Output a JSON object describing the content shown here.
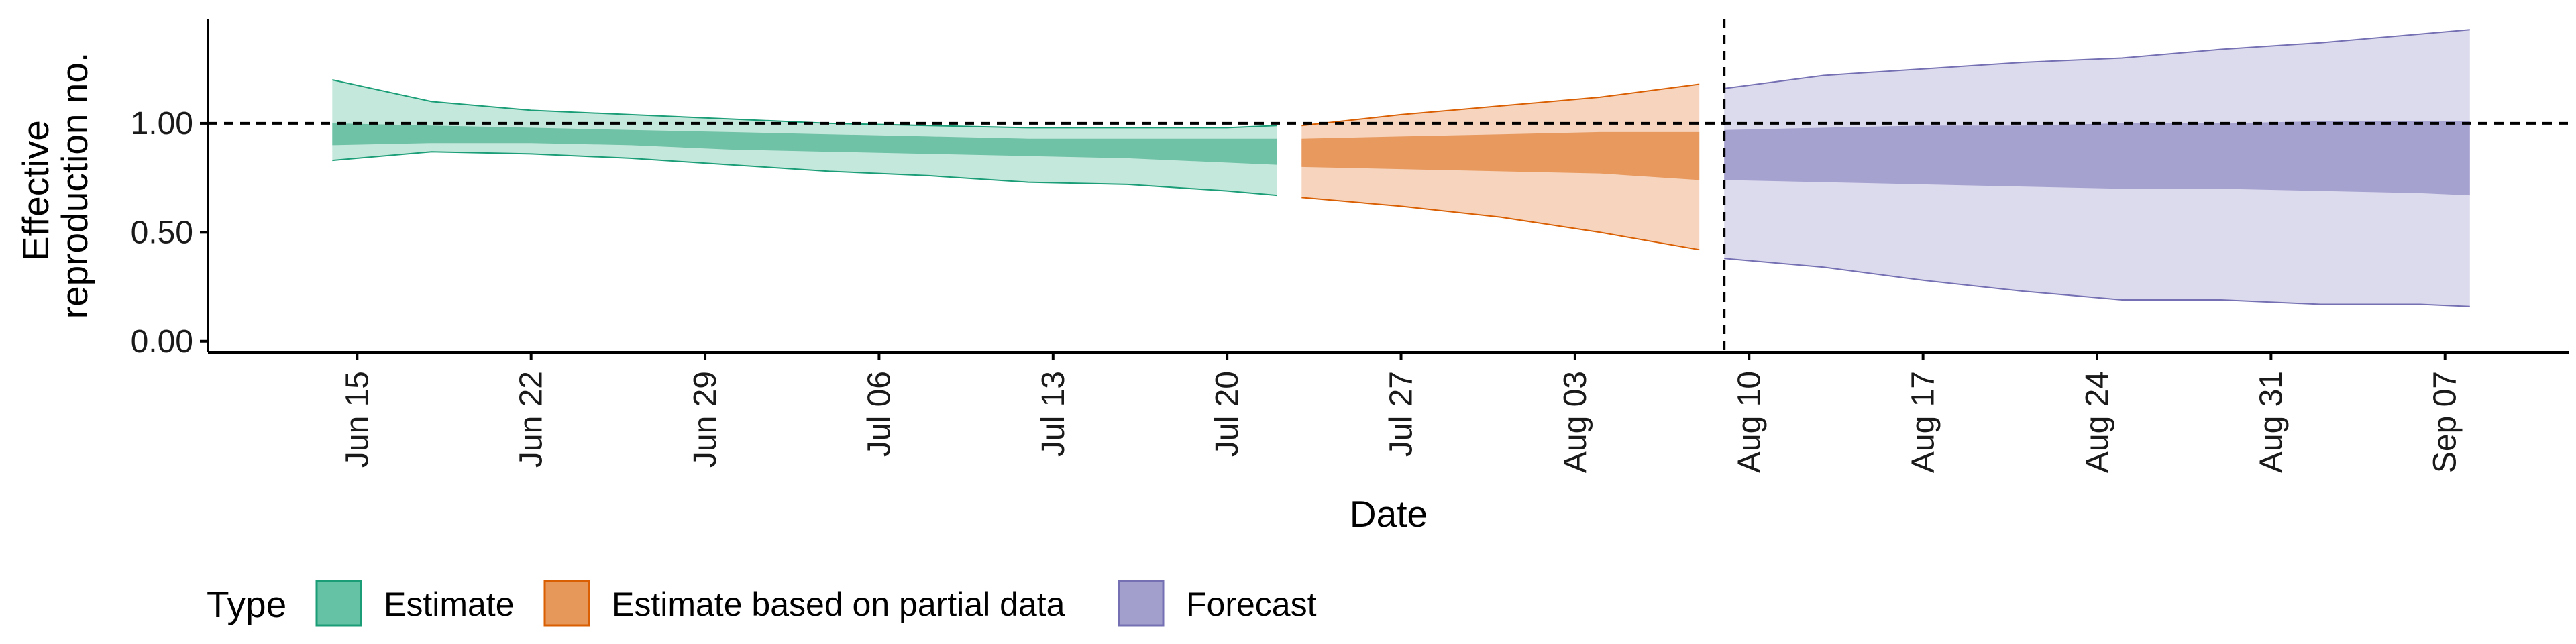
{
  "chart_data": {
    "type": "area",
    "xlabel": "Date",
    "ylabel_lines": [
      "Effective",
      "reproduction no."
    ],
    "x_range": [
      "2020-06-09",
      "2020-09-12"
    ],
    "y_range": [
      -0.05,
      1.48
    ],
    "y_ticks": [
      {
        "value": 0.0,
        "label": "0.00"
      },
      {
        "value": 0.5,
        "label": "0.50"
      },
      {
        "value": 1.0,
        "label": "1.00"
      }
    ],
    "x_ticks": [
      {
        "date": "2020-06-15",
        "label": "Jun 15"
      },
      {
        "date": "2020-06-22",
        "label": "Jun 22"
      },
      {
        "date": "2020-06-29",
        "label": "Jun 29"
      },
      {
        "date": "2020-07-06",
        "label": "Jul 06"
      },
      {
        "date": "2020-07-13",
        "label": "Jul 13"
      },
      {
        "date": "2020-07-20",
        "label": "Jul 20"
      },
      {
        "date": "2020-07-27",
        "label": "Jul 27"
      },
      {
        "date": "2020-08-03",
        "label": "Aug 03"
      },
      {
        "date": "2020-08-10",
        "label": "Aug 10"
      },
      {
        "date": "2020-08-17",
        "label": "Aug 17"
      },
      {
        "date": "2020-08-24",
        "label": "Aug 24"
      },
      {
        "date": "2020-08-31",
        "label": "Aug 31"
      },
      {
        "date": "2020-09-07",
        "label": "Sep 07"
      }
    ],
    "reference_hline": 1.0,
    "reference_vline": "2020-08-09",
    "grid": false,
    "legend": {
      "title": "Type",
      "position": "bottom-left",
      "items": [
        {
          "label": "Estimate",
          "fill": "#66c2a5",
          "stroke": "#1b9e77"
        },
        {
          "label": "Estimate based on partial data",
          "fill": "#e6975a",
          "stroke": "#d95f02"
        },
        {
          "label": "Forecast",
          "fill": "#a29fcc",
          "stroke": "#7570b3"
        }
      ]
    },
    "series": [
      {
        "name": "Estimate",
        "color_inner": "#6fc2a6",
        "color_outer": "#c5e8dc",
        "color_line": "#1b9e77",
        "points": [
          {
            "x": "2020-06-14",
            "lo90": 0.83,
            "lo50": 0.9,
            "hi50": 1.0,
            "hi90": 1.2
          },
          {
            "x": "2020-06-18",
            "lo90": 0.87,
            "lo50": 0.91,
            "hi50": 0.99,
            "hi90": 1.1
          },
          {
            "x": "2020-06-22",
            "lo90": 0.86,
            "lo50": 0.91,
            "hi50": 0.98,
            "hi90": 1.06
          },
          {
            "x": "2020-06-26",
            "lo90": 0.84,
            "lo50": 0.9,
            "hi50": 0.97,
            "hi90": 1.04
          },
          {
            "x": "2020-06-30",
            "lo90": 0.81,
            "lo50": 0.88,
            "hi50": 0.96,
            "hi90": 1.02
          },
          {
            "x": "2020-07-04",
            "lo90": 0.78,
            "lo50": 0.87,
            "hi50": 0.95,
            "hi90": 1.0
          },
          {
            "x": "2020-07-08",
            "lo90": 0.76,
            "lo50": 0.86,
            "hi50": 0.94,
            "hi90": 0.99
          },
          {
            "x": "2020-07-12",
            "lo90": 0.73,
            "lo50": 0.85,
            "hi50": 0.93,
            "hi90": 0.98
          },
          {
            "x": "2020-07-16",
            "lo90": 0.72,
            "lo50": 0.84,
            "hi50": 0.93,
            "hi90": 0.98
          },
          {
            "x": "2020-07-20",
            "lo90": 0.69,
            "lo50": 0.82,
            "hi50": 0.93,
            "hi90": 0.98
          },
          {
            "x": "2020-07-22",
            "lo90": 0.67,
            "lo50": 0.81,
            "hi50": 0.93,
            "hi90": 0.99
          }
        ]
      },
      {
        "name": "Estimate based on partial data",
        "color_inner": "#e8995e",
        "color_outer": "#f6d4bd",
        "color_line": "#d95f02",
        "points": [
          {
            "x": "2020-07-23",
            "lo90": 0.66,
            "lo50": 0.8,
            "hi50": 0.93,
            "hi90": 0.99
          },
          {
            "x": "2020-07-27",
            "lo90": 0.62,
            "lo50": 0.79,
            "hi50": 0.94,
            "hi90": 1.04
          },
          {
            "x": "2020-07-31",
            "lo90": 0.57,
            "lo50": 0.78,
            "hi50": 0.95,
            "hi90": 1.08
          },
          {
            "x": "2020-08-04",
            "lo90": 0.5,
            "lo50": 0.77,
            "hi50": 0.96,
            "hi90": 1.12
          },
          {
            "x": "2020-08-08",
            "lo90": 0.42,
            "lo50": 0.74,
            "hi50": 0.96,
            "hi90": 1.18
          }
        ]
      },
      {
        "name": "Forecast",
        "color_inner": "#a6a2d0",
        "color_outer": "#dcdbed",
        "color_line": "#7570b3",
        "points": [
          {
            "x": "2020-08-09",
            "lo90": 0.38,
            "lo50": 0.74,
            "hi50": 0.97,
            "hi90": 1.16
          },
          {
            "x": "2020-08-13",
            "lo90": 0.34,
            "lo50": 0.73,
            "hi50": 0.98,
            "hi90": 1.22
          },
          {
            "x": "2020-08-17",
            "lo90": 0.28,
            "lo50": 0.72,
            "hi50": 0.99,
            "hi90": 1.25
          },
          {
            "x": "2020-08-21",
            "lo90": 0.23,
            "lo50": 0.71,
            "hi50": 0.99,
            "hi90": 1.28
          },
          {
            "x": "2020-08-25",
            "lo90": 0.19,
            "lo50": 0.7,
            "hi50": 1.0,
            "hi90": 1.3
          },
          {
            "x": "2020-08-29",
            "lo90": 0.19,
            "lo50": 0.7,
            "hi50": 1.0,
            "hi90": 1.34
          },
          {
            "x": "2020-09-02",
            "lo90": 0.17,
            "lo50": 0.69,
            "hi50": 1.01,
            "hi90": 1.37
          },
          {
            "x": "2020-09-06",
            "lo90": 0.17,
            "lo50": 0.68,
            "hi50": 1.01,
            "hi90": 1.41
          },
          {
            "x": "2020-09-08",
            "lo90": 0.16,
            "lo50": 0.67,
            "hi50": 1.01,
            "hi90": 1.43
          }
        ]
      }
    ]
  }
}
